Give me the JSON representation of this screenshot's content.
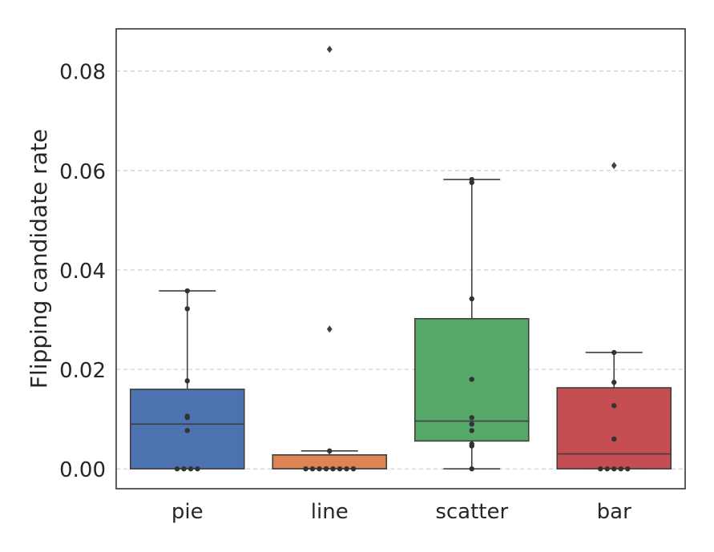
{
  "chart_data": {
    "type": "box",
    "ylabel": "Flipping candidate rate",
    "xlabel": "",
    "ylim": [
      -0.004,
      0.0885
    ],
    "yticks": [
      0.0,
      0.02,
      0.04,
      0.06,
      0.08
    ],
    "ytick_labels": [
      "0.00",
      "0.02",
      "0.04",
      "0.06",
      "0.08"
    ],
    "grid": "horizontal dashed",
    "categories": [
      "pie",
      "line",
      "scatter",
      "bar"
    ],
    "boxes": [
      {
        "category": "pie",
        "color": "#4c72b0",
        "q1": 0.0,
        "median": 0.009,
        "q3": 0.016,
        "whisker_low": 0.0,
        "whisker_high": 0.0358,
        "outliers": [],
        "points": [
          0.0,
          0.0,
          0.0,
          0.0,
          0.0077,
          0.0103,
          0.0106,
          0.0177,
          0.0322,
          0.0358
        ]
      },
      {
        "category": "line",
        "color": "#dd8452",
        "q1": 0.0,
        "median": 0.0,
        "q3": 0.0028,
        "whisker_low": 0.0,
        "whisker_high": 0.0036,
        "outliers": [
          0.0281,
          0.0844
        ],
        "points": [
          0.0,
          0.0,
          0.0,
          0.0,
          0.0,
          0.0,
          0.0,
          0.0,
          0.0036,
          0.0281,
          0.0844
        ]
      },
      {
        "category": "scatter",
        "color": "#55a868",
        "q1": 0.0056,
        "median": 0.0096,
        "q3": 0.0302,
        "whisker_low": 0.0,
        "whisker_high": 0.0582,
        "outliers": [],
        "points": [
          0.0,
          0.0046,
          0.005,
          0.0077,
          0.009,
          0.0103,
          0.018,
          0.0342,
          0.0576,
          0.0582
        ]
      },
      {
        "category": "bar",
        "color": "#c44e52",
        "q1": 0.0,
        "median": 0.003,
        "q3": 0.0163,
        "whisker_low": 0.0,
        "whisker_high": 0.0234,
        "outliers": [
          0.061
        ],
        "points": [
          0.0,
          0.0,
          0.0,
          0.0,
          0.0,
          0.006,
          0.0127,
          0.0174,
          0.0234,
          0.061
        ]
      }
    ]
  }
}
